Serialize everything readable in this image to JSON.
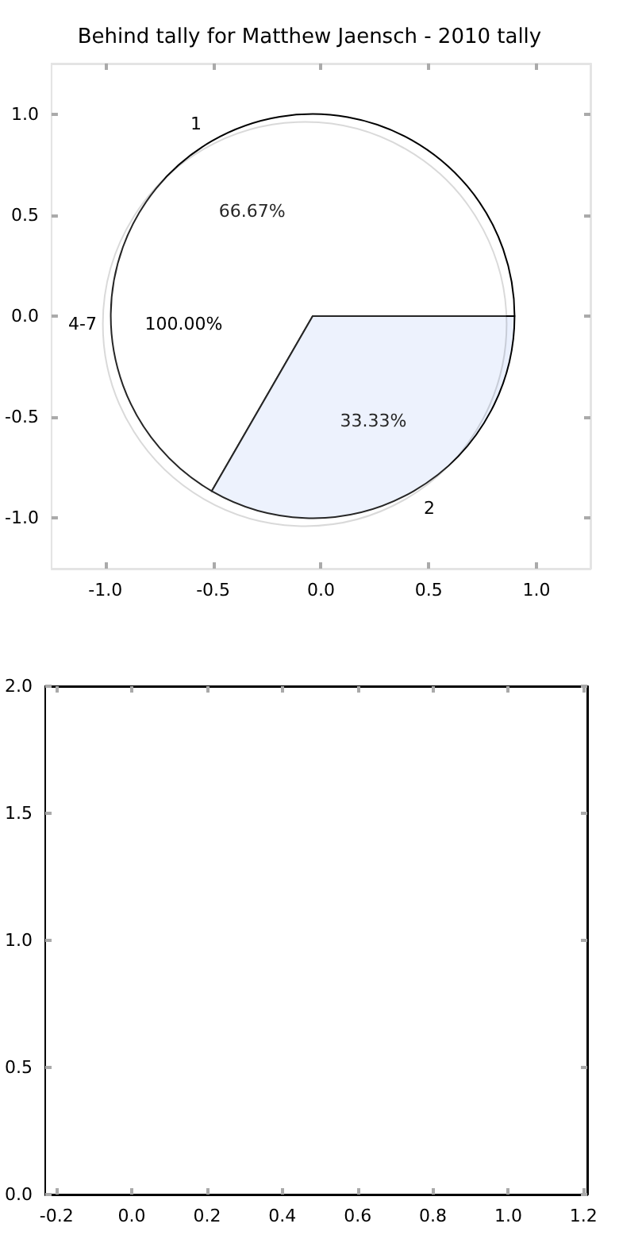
{
  "chart_data": [
    {
      "type": "scatter",
      "xlim": [
        -1.25,
        1.25
      ],
      "xticks": [
        {
          "value": -1,
          "label": "-1.0"
        },
        {
          "value": -0.5,
          "label": "-0.5"
        },
        {
          "value": 0,
          "label": "0.0"
        },
        {
          "value": 0.5,
          "label": "0.5"
        },
        {
          "value": 1,
          "label": "1.0"
        }
      ],
      "ylim": [
        -1.25,
        1.25
      ],
      "yticks": [
        {
          "value": -1,
          "label": "-1.0"
        },
        {
          "value": -0.5,
          "label": "-0.5"
        },
        {
          "value": 0,
          "label": "0.0"
        },
        {
          "value": 0.5,
          "label": "0.5"
        },
        {
          "value": 1,
          "label": "1.0"
        }
      ]
    },
    {
      "type": "pie",
      "categories": [
        "4-7"
      ],
      "values": [
        100
      ],
      "colors": [
        "#ffffff"
      ],
      "value_labels": [
        "100.00%"
      ]
    },
    {
      "type": "pie",
      "title": "Behind tally for Matthew Jaensch - 2010 tally",
      "categories": [
        "1",
        "2"
      ],
      "values": [
        66.67,
        33.33
      ],
      "colors": [
        "#ffffff",
        "#eaf0fd"
      ],
      "value_labels": [
        "66.67%",
        "33.33%"
      ]
    },
    {
      "type": "scatter",
      "xlim": [
        -0.23,
        1.21
      ],
      "xticks": [
        {
          "value": -0.2,
          "label": "-0.2"
        },
        {
          "value": 0,
          "label": "0.0"
        },
        {
          "value": 0.2,
          "label": "0.2"
        },
        {
          "value": 0.4,
          "label": "0.4"
        },
        {
          "value": 0.6,
          "label": "0.6"
        },
        {
          "value": 0.8,
          "label": "0.8"
        },
        {
          "value": 1,
          "label": "1.0"
        },
        {
          "value": 1.2,
          "label": "1.2"
        }
      ],
      "ylim": [
        0,
        2
      ],
      "yticks": [
        {
          "value": 0,
          "label": "0.0"
        },
        {
          "value": 0.5,
          "label": "0.5"
        },
        {
          "value": 1,
          "label": "1.0"
        },
        {
          "value": 1.5,
          "label": "1.5"
        },
        {
          "value": 2,
          "label": "2.0"
        }
      ]
    }
  ]
}
